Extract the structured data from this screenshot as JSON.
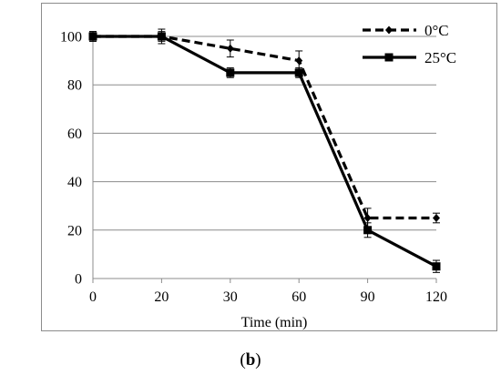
{
  "chart_data": {
    "type": "line",
    "xlabel": "Time (min)",
    "ylabel": "",
    "categories": [
      "0",
      "20",
      "30",
      "60",
      "90",
      "120"
    ],
    "ylim": [
      0,
      100
    ],
    "yticks": [
      0,
      20,
      40,
      60,
      80,
      100
    ],
    "grid": "horizontal",
    "legend_position": "top-right",
    "series": [
      {
        "name": "0°C",
        "style": "dashed",
        "marker": "diamond",
        "color": "#000000",
        "values": [
          100,
          100,
          95,
          90,
          25,
          25
        ],
        "errors": [
          2,
          2,
          3.5,
          4,
          4,
          2
        ]
      },
      {
        "name": "25°C",
        "style": "solid",
        "marker": "square",
        "color": "#000000",
        "values": [
          100,
          100,
          85,
          85,
          20,
          5
        ],
        "errors": [
          2,
          3,
          2,
          2,
          3,
          2.5
        ]
      }
    ]
  },
  "caption": {
    "prefix": "(",
    "letter": "b",
    "suffix": ")"
  }
}
